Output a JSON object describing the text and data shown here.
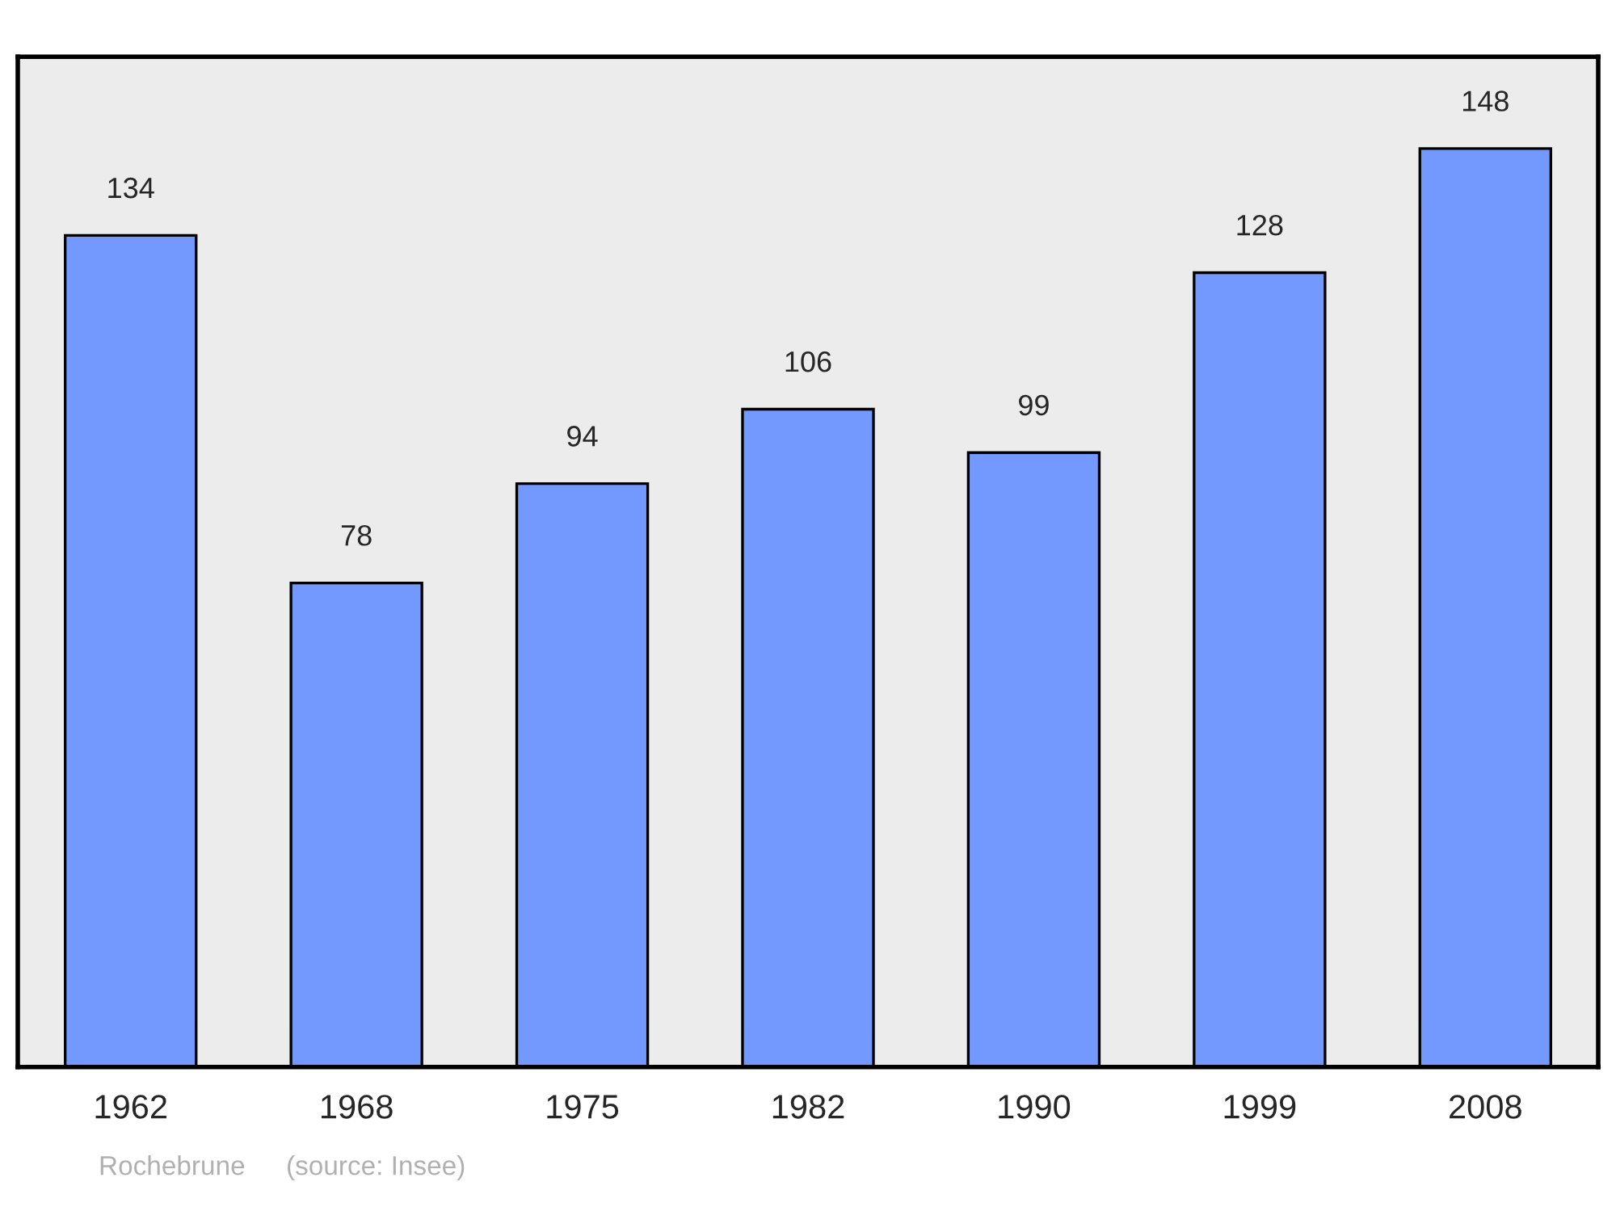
{
  "chart_data": {
    "type": "bar",
    "categories": [
      "1962",
      "1968",
      "1975",
      "1982",
      "1990",
      "1999",
      "2008"
    ],
    "values": [
      134,
      78,
      94,
      106,
      99,
      128,
      148
    ],
    "color": "#7399ff",
    "data_labels": true,
    "annotations": [
      "Rochebrune",
      "(source: Insee)"
    ]
  }
}
